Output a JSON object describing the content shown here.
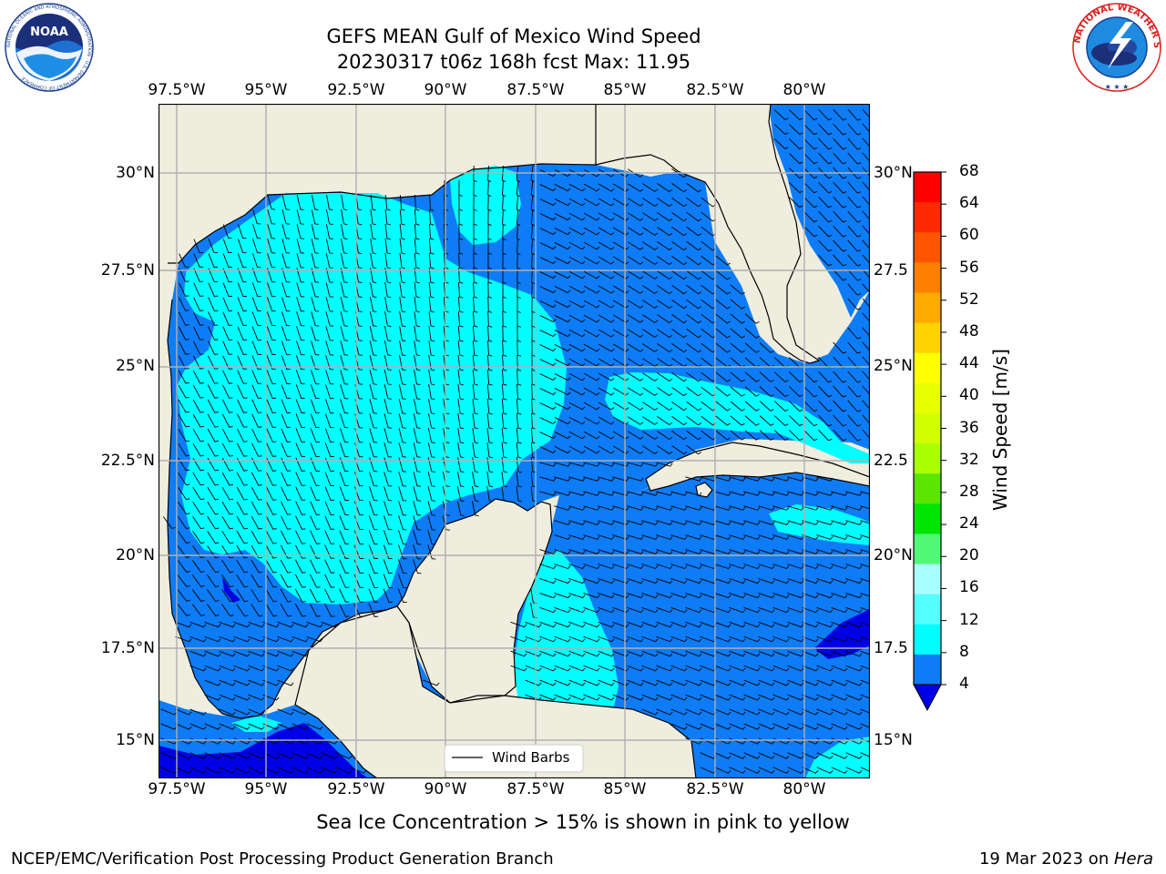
{
  "title": {
    "line1": "GEFS MEAN Gulf of Mexico Wind Speed",
    "line2": "20230317 t06z 168h fcst   Max: 11.95"
  },
  "logos": {
    "left": {
      "name": "NOAA",
      "ring_text": "NATIONAL OCEANIC AND ATMOSPHERIC ADMINISTRATION · U.S. DEPARTMENT OF COMMERCE"
    },
    "right": {
      "ring_text": "NATIONAL WEATHER SERVICE"
    }
  },
  "map": {
    "lon_ticks": [
      "97.5°W",
      "95°W",
      "92.5°W",
      "90°W",
      "87.5°W",
      "85°W",
      "82.5°W",
      "80°W"
    ],
    "lat_ticks_left": [
      "30°N",
      "27.5°N",
      "25°N",
      "22.5°N",
      "20°N",
      "17.5°N",
      "15°N"
    ],
    "lat_ticks_right": [
      "30°N",
      "27.5",
      "25°N",
      "22.5",
      "20°N",
      "17.5",
      "15°N"
    ],
    "legend_label": "Wind Barbs",
    "colors": {
      "land": "#efedde",
      "wind_4_8": "#0d7cf6",
      "wind_8_12": "#00ffff",
      "wind_below_4": "#0000e6",
      "grid": "#b0b0b0"
    }
  },
  "colorbar": {
    "label": "Wind Speed [m/s]",
    "ticks": [
      "68",
      "64",
      "60",
      "56",
      "52",
      "48",
      "44",
      "40",
      "36",
      "32",
      "28",
      "24",
      "20",
      "16",
      "12",
      "8",
      "4"
    ],
    "colors": [
      "#ff0000",
      "#ff2a00",
      "#ff5500",
      "#ff8000",
      "#ffaa00",
      "#ffd200",
      "#ffff00",
      "#e8ff00",
      "#d2ff00",
      "#aaff00",
      "#5ae600",
      "#00e600",
      "#50fa78",
      "#aaffff",
      "#55ffff",
      "#00ffff",
      "#0d7cf6"
    ],
    "extend_color": "#0000e6"
  },
  "subtitle": "Sea Ice Concentration > 15% is shown in pink to yellow",
  "footer": {
    "left": "NCEP/EMC/Verification Post Processing Product Generation Branch",
    "right_prefix": "19 Mar 2023 on ",
    "right_host": "Hera"
  }
}
